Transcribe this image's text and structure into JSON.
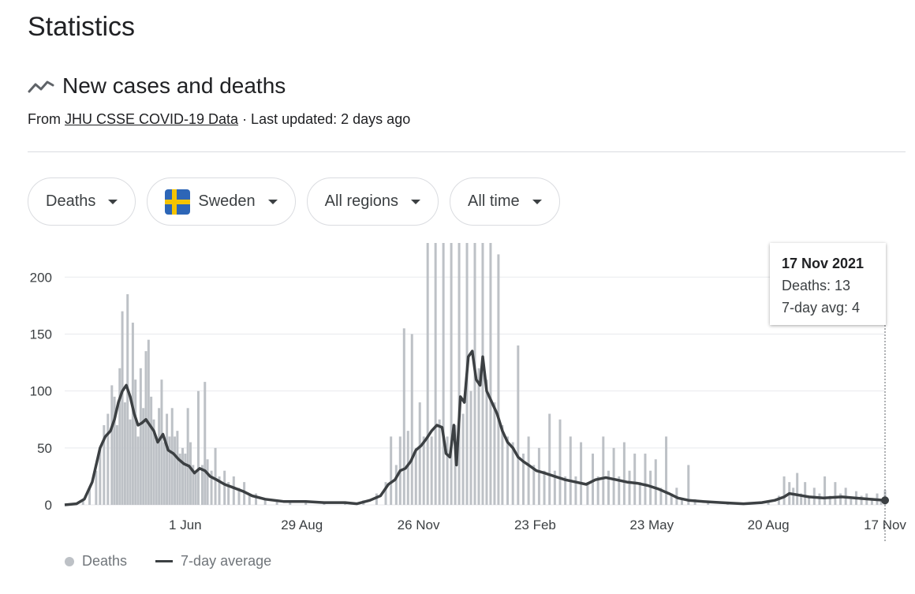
{
  "page": {
    "title": "Statistics"
  },
  "card": {
    "icon": "trending-line-icon",
    "title": "New cases and deaths",
    "source_prefix": "From ",
    "source_link": "JHU CSSE COVID-19 Data",
    "updated": " · Last updated: 2 days ago"
  },
  "filters": [
    {
      "label": "Deaths",
      "icon": ""
    },
    {
      "label": "Sweden",
      "icon": "sweden-flag-icon"
    },
    {
      "label": "All regions",
      "icon": ""
    },
    {
      "label": "All time",
      "icon": ""
    }
  ],
  "colors": {
    "bars": "#bdc1c6",
    "line": "#3c4043",
    "grid": "#e8eaed"
  },
  "tooltip": {
    "date": "17 Nov 2021",
    "deaths": "Deaths: 13",
    "avg": "7-day avg: 4"
  },
  "legend": {
    "bars_label": "Deaths",
    "line_label": "7-day average"
  },
  "chart_data": {
    "type": "bar",
    "yticks": [
      0,
      50,
      100,
      150,
      200
    ],
    "ylim": [
      0,
      230
    ],
    "x_range": [
      "2020-03-01",
      "2021-11-17"
    ],
    "xticks": [
      {
        "label": "1 Jun",
        "date": "2020-06-01"
      },
      {
        "label": "29 Aug",
        "date": "2020-08-29"
      },
      {
        "label": "26 Nov",
        "date": "2020-11-26"
      },
      {
        "label": "23 Feb",
        "date": "2021-02-23"
      },
      {
        "label": "23 May",
        "date": "2021-05-23"
      },
      {
        "label": "20 Aug",
        "date": "2021-08-20"
      },
      {
        "label": "17 Nov",
        "date": "2021-11-17"
      }
    ],
    "series": [
      {
        "name": "Deaths",
        "kind": "bar",
        "points": [
          [
            "2020-03-10",
            1
          ],
          [
            "2020-03-15",
            5
          ],
          [
            "2020-03-20",
            15
          ],
          [
            "2020-03-25",
            30
          ],
          [
            "2020-03-28",
            50
          ],
          [
            "2020-03-31",
            70
          ],
          [
            "2020-04-03",
            80
          ],
          [
            "2020-04-06",
            105
          ],
          [
            "2020-04-08",
            95
          ],
          [
            "2020-04-10",
            70
          ],
          [
            "2020-04-12",
            120
          ],
          [
            "2020-04-14",
            170
          ],
          [
            "2020-04-16",
            90
          ],
          [
            "2020-04-18",
            185
          ],
          [
            "2020-04-20",
            75
          ],
          [
            "2020-04-22",
            160
          ],
          [
            "2020-04-24",
            110
          ],
          [
            "2020-04-26",
            60
          ],
          [
            "2020-04-28",
            120
          ],
          [
            "2020-04-30",
            85
          ],
          [
            "2020-05-02",
            135
          ],
          [
            "2020-05-04",
            145
          ],
          [
            "2020-05-06",
            95
          ],
          [
            "2020-05-08",
            75
          ],
          [
            "2020-05-10",
            60
          ],
          [
            "2020-05-12",
            85
          ],
          [
            "2020-05-14",
            110
          ],
          [
            "2020-05-16",
            55
          ],
          [
            "2020-05-18",
            80
          ],
          [
            "2020-05-20",
            60
          ],
          [
            "2020-05-22",
            85
          ],
          [
            "2020-05-24",
            60
          ],
          [
            "2020-05-26",
            65
          ],
          [
            "2020-05-28",
            45
          ],
          [
            "2020-05-30",
            50
          ],
          [
            "2020-06-01",
            45
          ],
          [
            "2020-06-03",
            85
          ],
          [
            "2020-06-05",
            55
          ],
          [
            "2020-06-07",
            35
          ],
          [
            "2020-06-09",
            30
          ],
          [
            "2020-06-11",
            100
          ],
          [
            "2020-06-14",
            35
          ],
          [
            "2020-06-16",
            108
          ],
          [
            "2020-06-18",
            40
          ],
          [
            "2020-06-21",
            30
          ],
          [
            "2020-06-24",
            50
          ],
          [
            "2020-06-27",
            25
          ],
          [
            "2020-07-01",
            30
          ],
          [
            "2020-07-04",
            20
          ],
          [
            "2020-07-08",
            25
          ],
          [
            "2020-07-12",
            15
          ],
          [
            "2020-07-16",
            20
          ],
          [
            "2020-07-20",
            8
          ],
          [
            "2020-07-25",
            10
          ],
          [
            "2020-08-01",
            5
          ],
          [
            "2020-08-10",
            4
          ],
          [
            "2020-08-20",
            3
          ],
          [
            "2020-09-01",
            2
          ],
          [
            "2020-09-15",
            3
          ],
          [
            "2020-10-01",
            2
          ],
          [
            "2020-10-15",
            4
          ],
          [
            "2020-10-25",
            10
          ],
          [
            "2020-11-01",
            20
          ],
          [
            "2020-11-05",
            60
          ],
          [
            "2020-11-09",
            35
          ],
          [
            "2020-11-12",
            60
          ],
          [
            "2020-11-15",
            155
          ],
          [
            "2020-11-18",
            65
          ],
          [
            "2020-11-21",
            150
          ],
          [
            "2020-11-24",
            50
          ],
          [
            "2020-11-27",
            90
          ],
          [
            "2020-11-30",
            60
          ],
          [
            "2020-12-03",
            230
          ],
          [
            "2020-12-06",
            60
          ],
          [
            "2020-12-09",
            230
          ],
          [
            "2020-12-12",
            75
          ],
          [
            "2020-12-15",
            230
          ],
          [
            "2020-12-18",
            60
          ],
          [
            "2020-12-21",
            230
          ],
          [
            "2020-12-24",
            70
          ],
          [
            "2020-12-27",
            230
          ],
          [
            "2020-12-30",
            80
          ],
          [
            "2021-01-02",
            230
          ],
          [
            "2021-01-05",
            100
          ],
          [
            "2021-01-08",
            230
          ],
          [
            "2021-01-11",
            120
          ],
          [
            "2021-01-14",
            230
          ],
          [
            "2021-01-17",
            110
          ],
          [
            "2021-01-20",
            230
          ],
          [
            "2021-01-23",
            90
          ],
          [
            "2021-01-26",
            220
          ],
          [
            "2021-01-29",
            70
          ],
          [
            "2021-02-02",
            60
          ],
          [
            "2021-02-06",
            55
          ],
          [
            "2021-02-10",
            140
          ],
          [
            "2021-02-14",
            45
          ],
          [
            "2021-02-18",
            60
          ],
          [
            "2021-02-22",
            35
          ],
          [
            "2021-02-26",
            50
          ],
          [
            "2021-03-02",
            30
          ],
          [
            "2021-03-06",
            80
          ],
          [
            "2021-03-10",
            30
          ],
          [
            "2021-03-14",
            75
          ],
          [
            "2021-03-18",
            25
          ],
          [
            "2021-03-22",
            60
          ],
          [
            "2021-03-26",
            25
          ],
          [
            "2021-03-30",
            55
          ],
          [
            "2021-04-04",
            20
          ],
          [
            "2021-04-08",
            45
          ],
          [
            "2021-04-12",
            25
          ],
          [
            "2021-04-16",
            60
          ],
          [
            "2021-04-20",
            30
          ],
          [
            "2021-04-24",
            50
          ],
          [
            "2021-04-28",
            25
          ],
          [
            "2021-05-02",
            55
          ],
          [
            "2021-05-06",
            30
          ],
          [
            "2021-05-10",
            45
          ],
          [
            "2021-05-14",
            20
          ],
          [
            "2021-05-18",
            45
          ],
          [
            "2021-05-22",
            30
          ],
          [
            "2021-05-26",
            40
          ],
          [
            "2021-05-30",
            15
          ],
          [
            "2021-06-03",
            60
          ],
          [
            "2021-06-07",
            10
          ],
          [
            "2021-06-11",
            15
          ],
          [
            "2021-06-15",
            5
          ],
          [
            "2021-06-20",
            35
          ],
          [
            "2021-06-25",
            5
          ],
          [
            "2021-07-05",
            3
          ],
          [
            "2021-07-20",
            2
          ],
          [
            "2021-08-05",
            2
          ],
          [
            "2021-08-20",
            3
          ],
          [
            "2021-08-28",
            8
          ],
          [
            "2021-09-01",
            25
          ],
          [
            "2021-09-05",
            20
          ],
          [
            "2021-09-08",
            15
          ],
          [
            "2021-09-11",
            28
          ],
          [
            "2021-09-14",
            10
          ],
          [
            "2021-09-17",
            20
          ],
          [
            "2021-09-20",
            8
          ],
          [
            "2021-09-24",
            15
          ],
          [
            "2021-09-28",
            10
          ],
          [
            "2021-10-02",
            25
          ],
          [
            "2021-10-06",
            8
          ],
          [
            "2021-10-10",
            20
          ],
          [
            "2021-10-14",
            10
          ],
          [
            "2021-10-18",
            15
          ],
          [
            "2021-10-22",
            5
          ],
          [
            "2021-10-26",
            12
          ],
          [
            "2021-10-30",
            8
          ],
          [
            "2021-11-03",
            10
          ],
          [
            "2021-11-07",
            6
          ],
          [
            "2021-11-11",
            10
          ],
          [
            "2021-11-14",
            5
          ],
          [
            "2021-11-17",
            13
          ]
        ]
      },
      {
        "name": "7-day average",
        "kind": "line",
        "points": [
          [
            "2020-03-01",
            0
          ],
          [
            "2020-03-10",
            1
          ],
          [
            "2020-03-16",
            5
          ],
          [
            "2020-03-22",
            20
          ],
          [
            "2020-03-28",
            50
          ],
          [
            "2020-04-01",
            60
          ],
          [
            "2020-04-05",
            65
          ],
          [
            "2020-04-08",
            75
          ],
          [
            "2020-04-11",
            90
          ],
          [
            "2020-04-14",
            100
          ],
          [
            "2020-04-17",
            105
          ],
          [
            "2020-04-20",
            95
          ],
          [
            "2020-04-23",
            80
          ],
          [
            "2020-04-26",
            70
          ],
          [
            "2020-04-29",
            72
          ],
          [
            "2020-05-02",
            75
          ],
          [
            "2020-05-05",
            70
          ],
          [
            "2020-05-08",
            65
          ],
          [
            "2020-05-11",
            55
          ],
          [
            "2020-05-15",
            62
          ],
          [
            "2020-05-19",
            48
          ],
          [
            "2020-05-23",
            45
          ],
          [
            "2020-05-27",
            40
          ],
          [
            "2020-05-31",
            36
          ],
          [
            "2020-06-04",
            34
          ],
          [
            "2020-06-08",
            28
          ],
          [
            "2020-06-12",
            32
          ],
          [
            "2020-06-16",
            30
          ],
          [
            "2020-06-20",
            25
          ],
          [
            "2020-06-25",
            22
          ],
          [
            "2020-07-01",
            18
          ],
          [
            "2020-07-08",
            15
          ],
          [
            "2020-07-15",
            12
          ],
          [
            "2020-07-22",
            8
          ],
          [
            "2020-08-01",
            5
          ],
          [
            "2020-08-15",
            3
          ],
          [
            "2020-09-01",
            3
          ],
          [
            "2020-09-15",
            2
          ],
          [
            "2020-10-01",
            2
          ],
          [
            "2020-10-10",
            1
          ],
          [
            "2020-10-20",
            4
          ],
          [
            "2020-10-28",
            8
          ],
          [
            "2020-11-03",
            18
          ],
          [
            "2020-11-08",
            22
          ],
          [
            "2020-11-12",
            30
          ],
          [
            "2020-11-16",
            32
          ],
          [
            "2020-11-20",
            38
          ],
          [
            "2020-11-24",
            48
          ],
          [
            "2020-11-28",
            52
          ],
          [
            "2020-12-02",
            58
          ],
          [
            "2020-12-06",
            65
          ],
          [
            "2020-12-10",
            70
          ],
          [
            "2020-12-14",
            68
          ],
          [
            "2020-12-17",
            45
          ],
          [
            "2020-12-20",
            42
          ],
          [
            "2020-12-23",
            70
          ],
          [
            "2020-12-25",
            35
          ],
          [
            "2020-12-28",
            95
          ],
          [
            "2020-12-31",
            90
          ],
          [
            "2021-01-03",
            130
          ],
          [
            "2021-01-06",
            135
          ],
          [
            "2021-01-09",
            110
          ],
          [
            "2021-01-12",
            105
          ],
          [
            "2021-01-14",
            130
          ],
          [
            "2021-01-17",
            100
          ],
          [
            "2021-01-21",
            90
          ],
          [
            "2021-01-25",
            80
          ],
          [
            "2021-01-29",
            65
          ],
          [
            "2021-02-02",
            55
          ],
          [
            "2021-02-06",
            50
          ],
          [
            "2021-02-10",
            42
          ],
          [
            "2021-02-14",
            38
          ],
          [
            "2021-02-18",
            35
          ],
          [
            "2021-02-24",
            30
          ],
          [
            "2021-03-02",
            28
          ],
          [
            "2021-03-10",
            25
          ],
          [
            "2021-03-18",
            22
          ],
          [
            "2021-03-26",
            20
          ],
          [
            "2021-04-03",
            18
          ],
          [
            "2021-04-10",
            22
          ],
          [
            "2021-04-18",
            24
          ],
          [
            "2021-04-26",
            22
          ],
          [
            "2021-05-04",
            20
          ],
          [
            "2021-05-12",
            19
          ],
          [
            "2021-05-20",
            17
          ],
          [
            "2021-05-28",
            14
          ],
          [
            "2021-06-05",
            10
          ],
          [
            "2021-06-12",
            6
          ],
          [
            "2021-06-20",
            4
          ],
          [
            "2021-07-01",
            3
          ],
          [
            "2021-07-15",
            2
          ],
          [
            "2021-08-01",
            1
          ],
          [
            "2021-08-15",
            2
          ],
          [
            "2021-08-25",
            4
          ],
          [
            "2021-09-01",
            7
          ],
          [
            "2021-09-05",
            10
          ],
          [
            "2021-09-10",
            9
          ],
          [
            "2021-09-20",
            7
          ],
          [
            "2021-10-01",
            6
          ],
          [
            "2021-10-15",
            7
          ],
          [
            "2021-10-25",
            6
          ],
          [
            "2021-11-05",
            5
          ],
          [
            "2021-11-17",
            4
          ]
        ]
      }
    ],
    "legend": "bottom-left",
    "grid": true
  }
}
